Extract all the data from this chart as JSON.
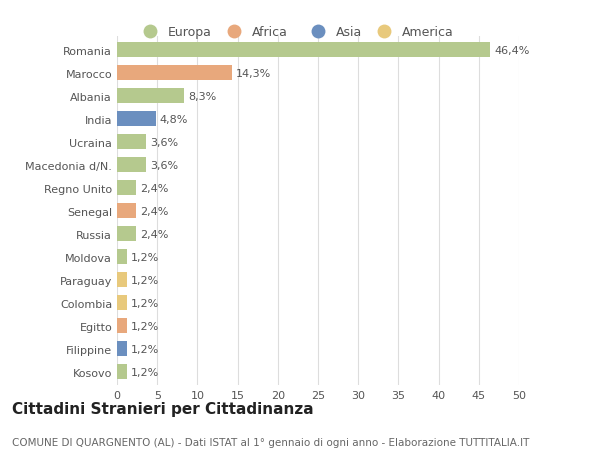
{
  "categories": [
    "Romania",
    "Marocco",
    "Albania",
    "India",
    "Ucraina",
    "Macedonia d/N.",
    "Regno Unito",
    "Senegal",
    "Russia",
    "Moldova",
    "Paraguay",
    "Colombia",
    "Egitto",
    "Filippine",
    "Kosovo"
  ],
  "values": [
    46.4,
    14.3,
    8.3,
    4.8,
    3.6,
    3.6,
    2.4,
    2.4,
    2.4,
    1.2,
    1.2,
    1.2,
    1.2,
    1.2,
    1.2
  ],
  "labels": [
    "46,4%",
    "14,3%",
    "8,3%",
    "4,8%",
    "3,6%",
    "3,6%",
    "2,4%",
    "2,4%",
    "2,4%",
    "1,2%",
    "1,2%",
    "1,2%",
    "1,2%",
    "1,2%",
    "1,2%"
  ],
  "colors": [
    "#b5c98e",
    "#e8a87c",
    "#b5c98e",
    "#6b8fbf",
    "#b5c98e",
    "#b5c98e",
    "#b5c98e",
    "#e8a87c",
    "#b5c98e",
    "#b5c98e",
    "#e8c97c",
    "#e8c97c",
    "#e8a87c",
    "#6b8fbf",
    "#b5c98e"
  ],
  "legend": [
    {
      "label": "Europa",
      "color": "#b5c98e"
    },
    {
      "label": "Africa",
      "color": "#e8a87c"
    },
    {
      "label": "Asia",
      "color": "#6b8fbf"
    },
    {
      "label": "America",
      "color": "#e8c97c"
    }
  ],
  "xlim": [
    0,
    50
  ],
  "xticks": [
    0,
    5,
    10,
    15,
    20,
    25,
    30,
    35,
    40,
    45,
    50
  ],
  "title": "Cittadini Stranieri per Cittadinanza",
  "subtitle": "COMUNE DI QUARGNENTO (AL) - Dati ISTAT al 1° gennaio di ogni anno - Elaborazione TUTTITALIA.IT",
  "bg_color": "#ffffff",
  "grid_color": "#dddddd",
  "bar_height": 0.65,
  "label_fontsize": 8,
  "tick_fontsize": 8,
  "ytick_fontsize": 8,
  "title_fontsize": 11,
  "subtitle_fontsize": 7.5,
  "legend_fontsize": 9
}
